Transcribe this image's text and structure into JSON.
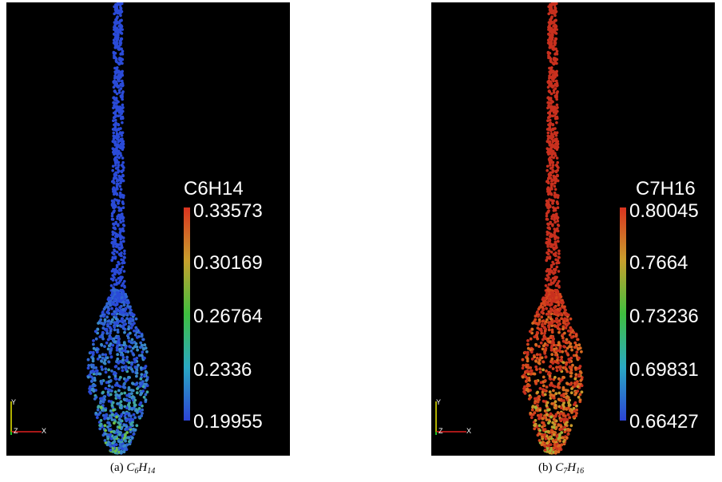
{
  "panels": [
    {
      "legend_title": "C6H14",
      "ticks": [
        "0.33573",
        "0.30169",
        "0.26764",
        "0.2336",
        "0.19955"
      ],
      "caption_label": "(a)",
      "caption_formula": {
        "base": [
          "C",
          "H"
        ],
        "subs": [
          "6",
          "14"
        ]
      },
      "particle_colors": [
        "#2a4bd8",
        "#2f66d0",
        "#3a8ac8",
        "#3fa6a0",
        "#6cc04a"
      ],
      "axis_labels": {
        "y": "Y",
        "z": "Z",
        "x": "X"
      }
    },
    {
      "legend_title": "C7H16",
      "ticks": [
        "0.80045",
        "0.7664",
        "0.73236",
        "0.69831",
        "0.66427"
      ],
      "caption_label": "(b)",
      "caption_formula": {
        "base": [
          "C",
          "H"
        ],
        "subs": [
          "7",
          "16"
        ]
      },
      "particle_colors": [
        "#c8301e",
        "#d4441c",
        "#d86a20",
        "#c99a2a",
        "#9fb436"
      ],
      "axis_labels": {
        "y": "Y",
        "z": "Z",
        "x": "X"
      }
    }
  ],
  "colors": {
    "background": "#000000",
    "colorbar_stops": [
      "#d9331f",
      "#c7a02d",
      "#3fbf3f",
      "#2aa9c4",
      "#2c44d6"
    ]
  }
}
